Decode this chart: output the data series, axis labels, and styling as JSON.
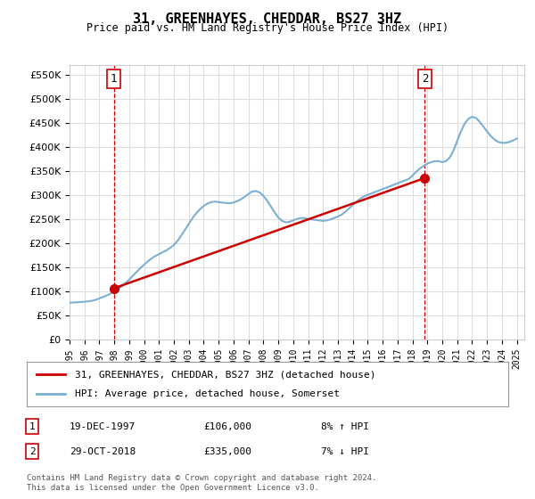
{
  "title": "31, GREENHAYES, CHEDDAR, BS27 3HZ",
  "subtitle": "Price paid vs. HM Land Registry's House Price Index (HPI)",
  "ylim": [
    0,
    570000
  ],
  "yticks": [
    0,
    50000,
    100000,
    150000,
    200000,
    250000,
    300000,
    350000,
    400000,
    450000,
    500000,
    550000
  ],
  "xlim_start": 1995.0,
  "xlim_end": 2025.5,
  "hpi_color": "#7bafd4",
  "price_color": "#cc0000",
  "dashed_color": "#cc0000",
  "sale1_x": 1997.97,
  "sale1_y": 106000,
  "sale2_x": 2018.83,
  "sale2_y": 335000,
  "legend_line1": "31, GREENHAYES, CHEDDAR, BS27 3HZ (detached house)",
  "legend_line2": "HPI: Average price, detached house, Somerset",
  "annotation1_label": "1",
  "annotation2_label": "2",
  "table_row1": [
    "1",
    "19-DEC-1997",
    "£106,000",
    "8% ↑ HPI"
  ],
  "table_row2": [
    "2",
    "29-OCT-2018",
    "£335,000",
    "7% ↓ HPI"
  ],
  "footer": "Contains HM Land Registry data © Crown copyright and database right 2024.\nThis data is licensed under the Open Government Licence v3.0.",
  "background_color": "#ffffff",
  "grid_color": "#dddddd",
  "hpi_data_x": [
    1995.0,
    1995.25,
    1995.5,
    1995.75,
    1996.0,
    1996.25,
    1996.5,
    1996.75,
    1997.0,
    1997.25,
    1997.5,
    1997.75,
    1998.0,
    1998.25,
    1998.5,
    1998.75,
    1999.0,
    1999.25,
    1999.5,
    1999.75,
    2000.0,
    2000.25,
    2000.5,
    2000.75,
    2001.0,
    2001.25,
    2001.5,
    2001.75,
    2002.0,
    2002.25,
    2002.5,
    2002.75,
    2003.0,
    2003.25,
    2003.5,
    2003.75,
    2004.0,
    2004.25,
    2004.5,
    2004.75,
    2005.0,
    2005.25,
    2005.5,
    2005.75,
    2006.0,
    2006.25,
    2006.5,
    2006.75,
    2007.0,
    2007.25,
    2007.5,
    2007.75,
    2008.0,
    2008.25,
    2008.5,
    2008.75,
    2009.0,
    2009.25,
    2009.5,
    2009.75,
    2010.0,
    2010.25,
    2010.5,
    2010.75,
    2011.0,
    2011.25,
    2011.5,
    2011.75,
    2012.0,
    2012.25,
    2012.5,
    2012.75,
    2013.0,
    2013.25,
    2013.5,
    2013.75,
    2014.0,
    2014.25,
    2014.5,
    2014.75,
    2015.0,
    2015.25,
    2015.5,
    2015.75,
    2016.0,
    2016.25,
    2016.5,
    2016.75,
    2017.0,
    2017.25,
    2017.5,
    2017.75,
    2018.0,
    2018.25,
    2018.5,
    2018.75,
    2019.0,
    2019.25,
    2019.5,
    2019.75,
    2020.0,
    2020.25,
    2020.5,
    2020.75,
    2021.0,
    2021.25,
    2021.5,
    2021.75,
    2022.0,
    2022.25,
    2022.5,
    2022.75,
    2023.0,
    2023.25,
    2023.5,
    2023.75,
    2024.0,
    2024.25,
    2024.5,
    2024.75,
    2025.0
  ],
  "hpi_data_y": [
    76000,
    76500,
    77000,
    77500,
    78000,
    79000,
    80000,
    82000,
    85000,
    88000,
    91000,
    95000,
    99000,
    104000,
    110000,
    117000,
    124000,
    132000,
    140000,
    148000,
    155000,
    162000,
    168000,
    173000,
    177000,
    181000,
    185000,
    190000,
    196000,
    205000,
    216000,
    228000,
    240000,
    252000,
    262000,
    270000,
    277000,
    282000,
    285000,
    286000,
    285000,
    284000,
    283000,
    283000,
    284000,
    287000,
    291000,
    296000,
    302000,
    307000,
    308000,
    305000,
    298000,
    288000,
    276000,
    264000,
    253000,
    246000,
    243000,
    244000,
    247000,
    250000,
    252000,
    252000,
    250000,
    249000,
    248000,
    247000,
    246000,
    247000,
    249000,
    252000,
    255000,
    259000,
    265000,
    272000,
    279000,
    286000,
    292000,
    297000,
    300000,
    303000,
    306000,
    309000,
    312000,
    315000,
    318000,
    321000,
    324000,
    327000,
    330000,
    333000,
    340000,
    348000,
    355000,
    360000,
    365000,
    368000,
    370000,
    370000,
    368000,
    370000,
    378000,
    392000,
    412000,
    432000,
    448000,
    458000,
    462000,
    460000,
    452000,
    442000,
    432000,
    422000,
    415000,
    410000,
    408000,
    408000,
    410000,
    413000,
    417000
  ],
  "price_data_x": [
    1997.97,
    2018.83
  ],
  "price_data_y": [
    106000,
    335000
  ],
  "xtick_years": [
    1995,
    1996,
    1997,
    1998,
    1999,
    2000,
    2001,
    2002,
    2003,
    2004,
    2005,
    2006,
    2007,
    2008,
    2009,
    2010,
    2011,
    2012,
    2013,
    2014,
    2015,
    2016,
    2017,
    2018,
    2019,
    2020,
    2021,
    2022,
    2023,
    2024,
    2025
  ]
}
